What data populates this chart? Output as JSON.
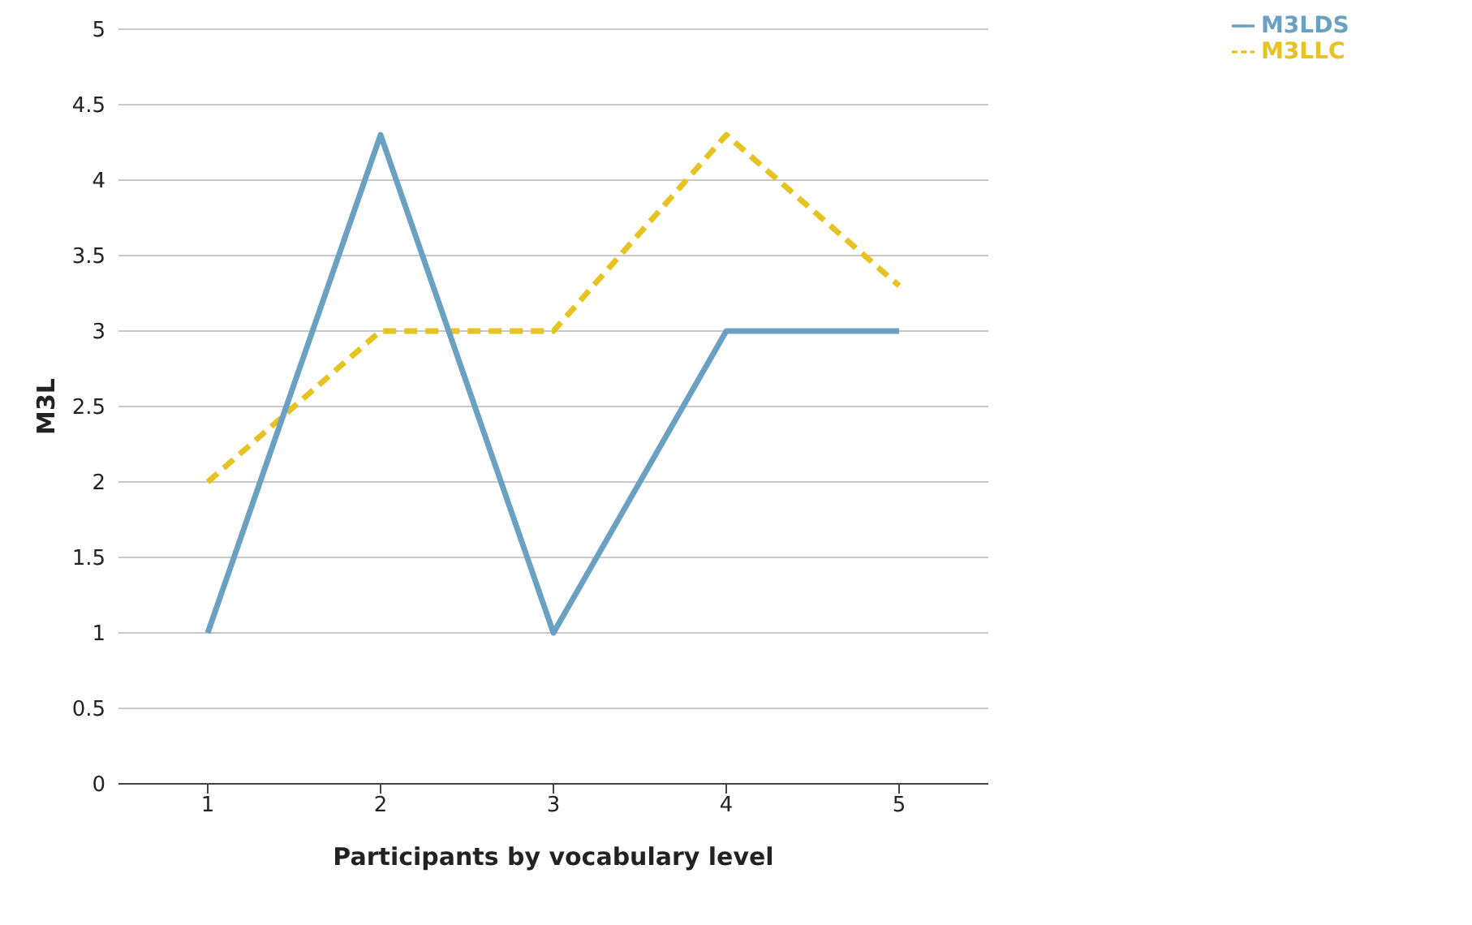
{
  "chart_data": {
    "type": "line",
    "xlabel": "Participants by vocabulary level",
    "ylabel": "M3L",
    "categories": [
      "1",
      "2",
      "3",
      "4",
      "5"
    ],
    "series": [
      {
        "name": "M3LLC",
        "color": "#e6c320",
        "line_style": "dashed",
        "values": [
          2,
          3,
          3,
          4.3,
          3.3
        ]
      },
      {
        "name": "M3LDS",
        "color": "#6aa0c1",
        "line_style": "solid",
        "values": [
          1,
          4.3,
          1,
          3,
          3
        ]
      }
    ],
    "ylim": [
      0,
      5
    ],
    "yticks": [
      0,
      0.5,
      1,
      1.5,
      2,
      2.5,
      3,
      3.5,
      4,
      4.5,
      5
    ],
    "grid": "y",
    "legend": "top right",
    "marker": "none"
  }
}
